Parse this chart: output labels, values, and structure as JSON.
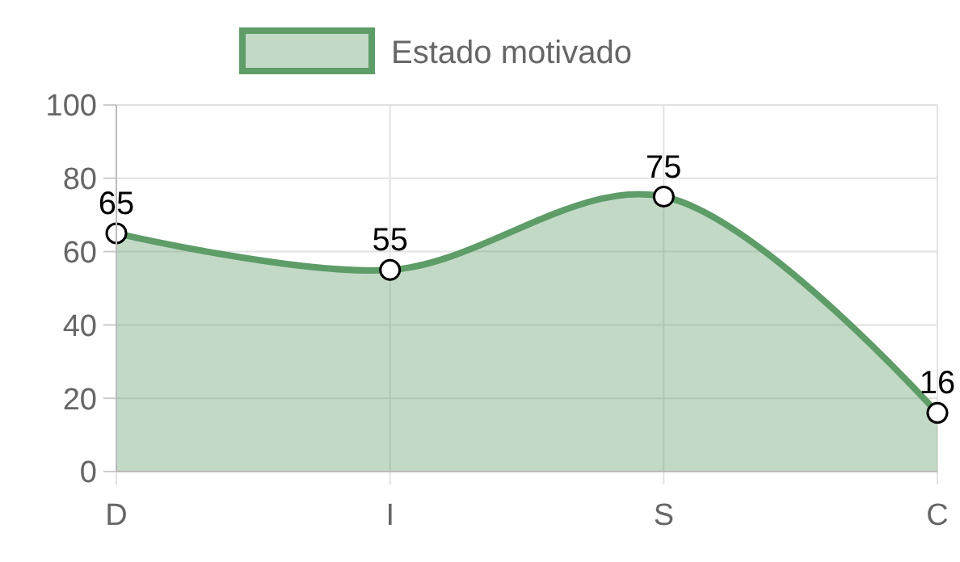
{
  "chart_data": {
    "type": "area",
    "categories": [
      "D",
      "I",
      "S",
      "C"
    ],
    "series": [
      {
        "name": "Estado motivado",
        "color": "#5e9c68",
        "values": [
          65,
          55,
          75,
          16
        ]
      }
    ],
    "ylim": [
      0,
      100
    ],
    "yticks": [
      0,
      20,
      40,
      60,
      80,
      100
    ],
    "grid": true,
    "legend": "top",
    "marker": "circle",
    "data_labels": true
  }
}
